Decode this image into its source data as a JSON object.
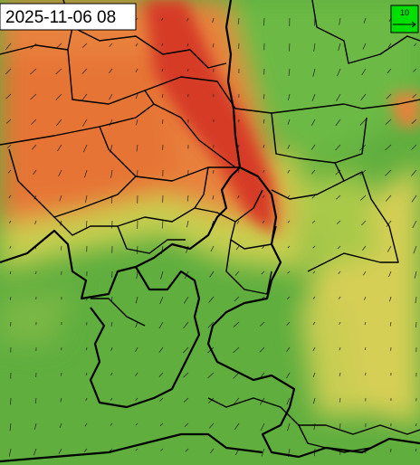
{
  "timestamp": "2025-11-06 08",
  "legend": {
    "label": "10"
  }
}
